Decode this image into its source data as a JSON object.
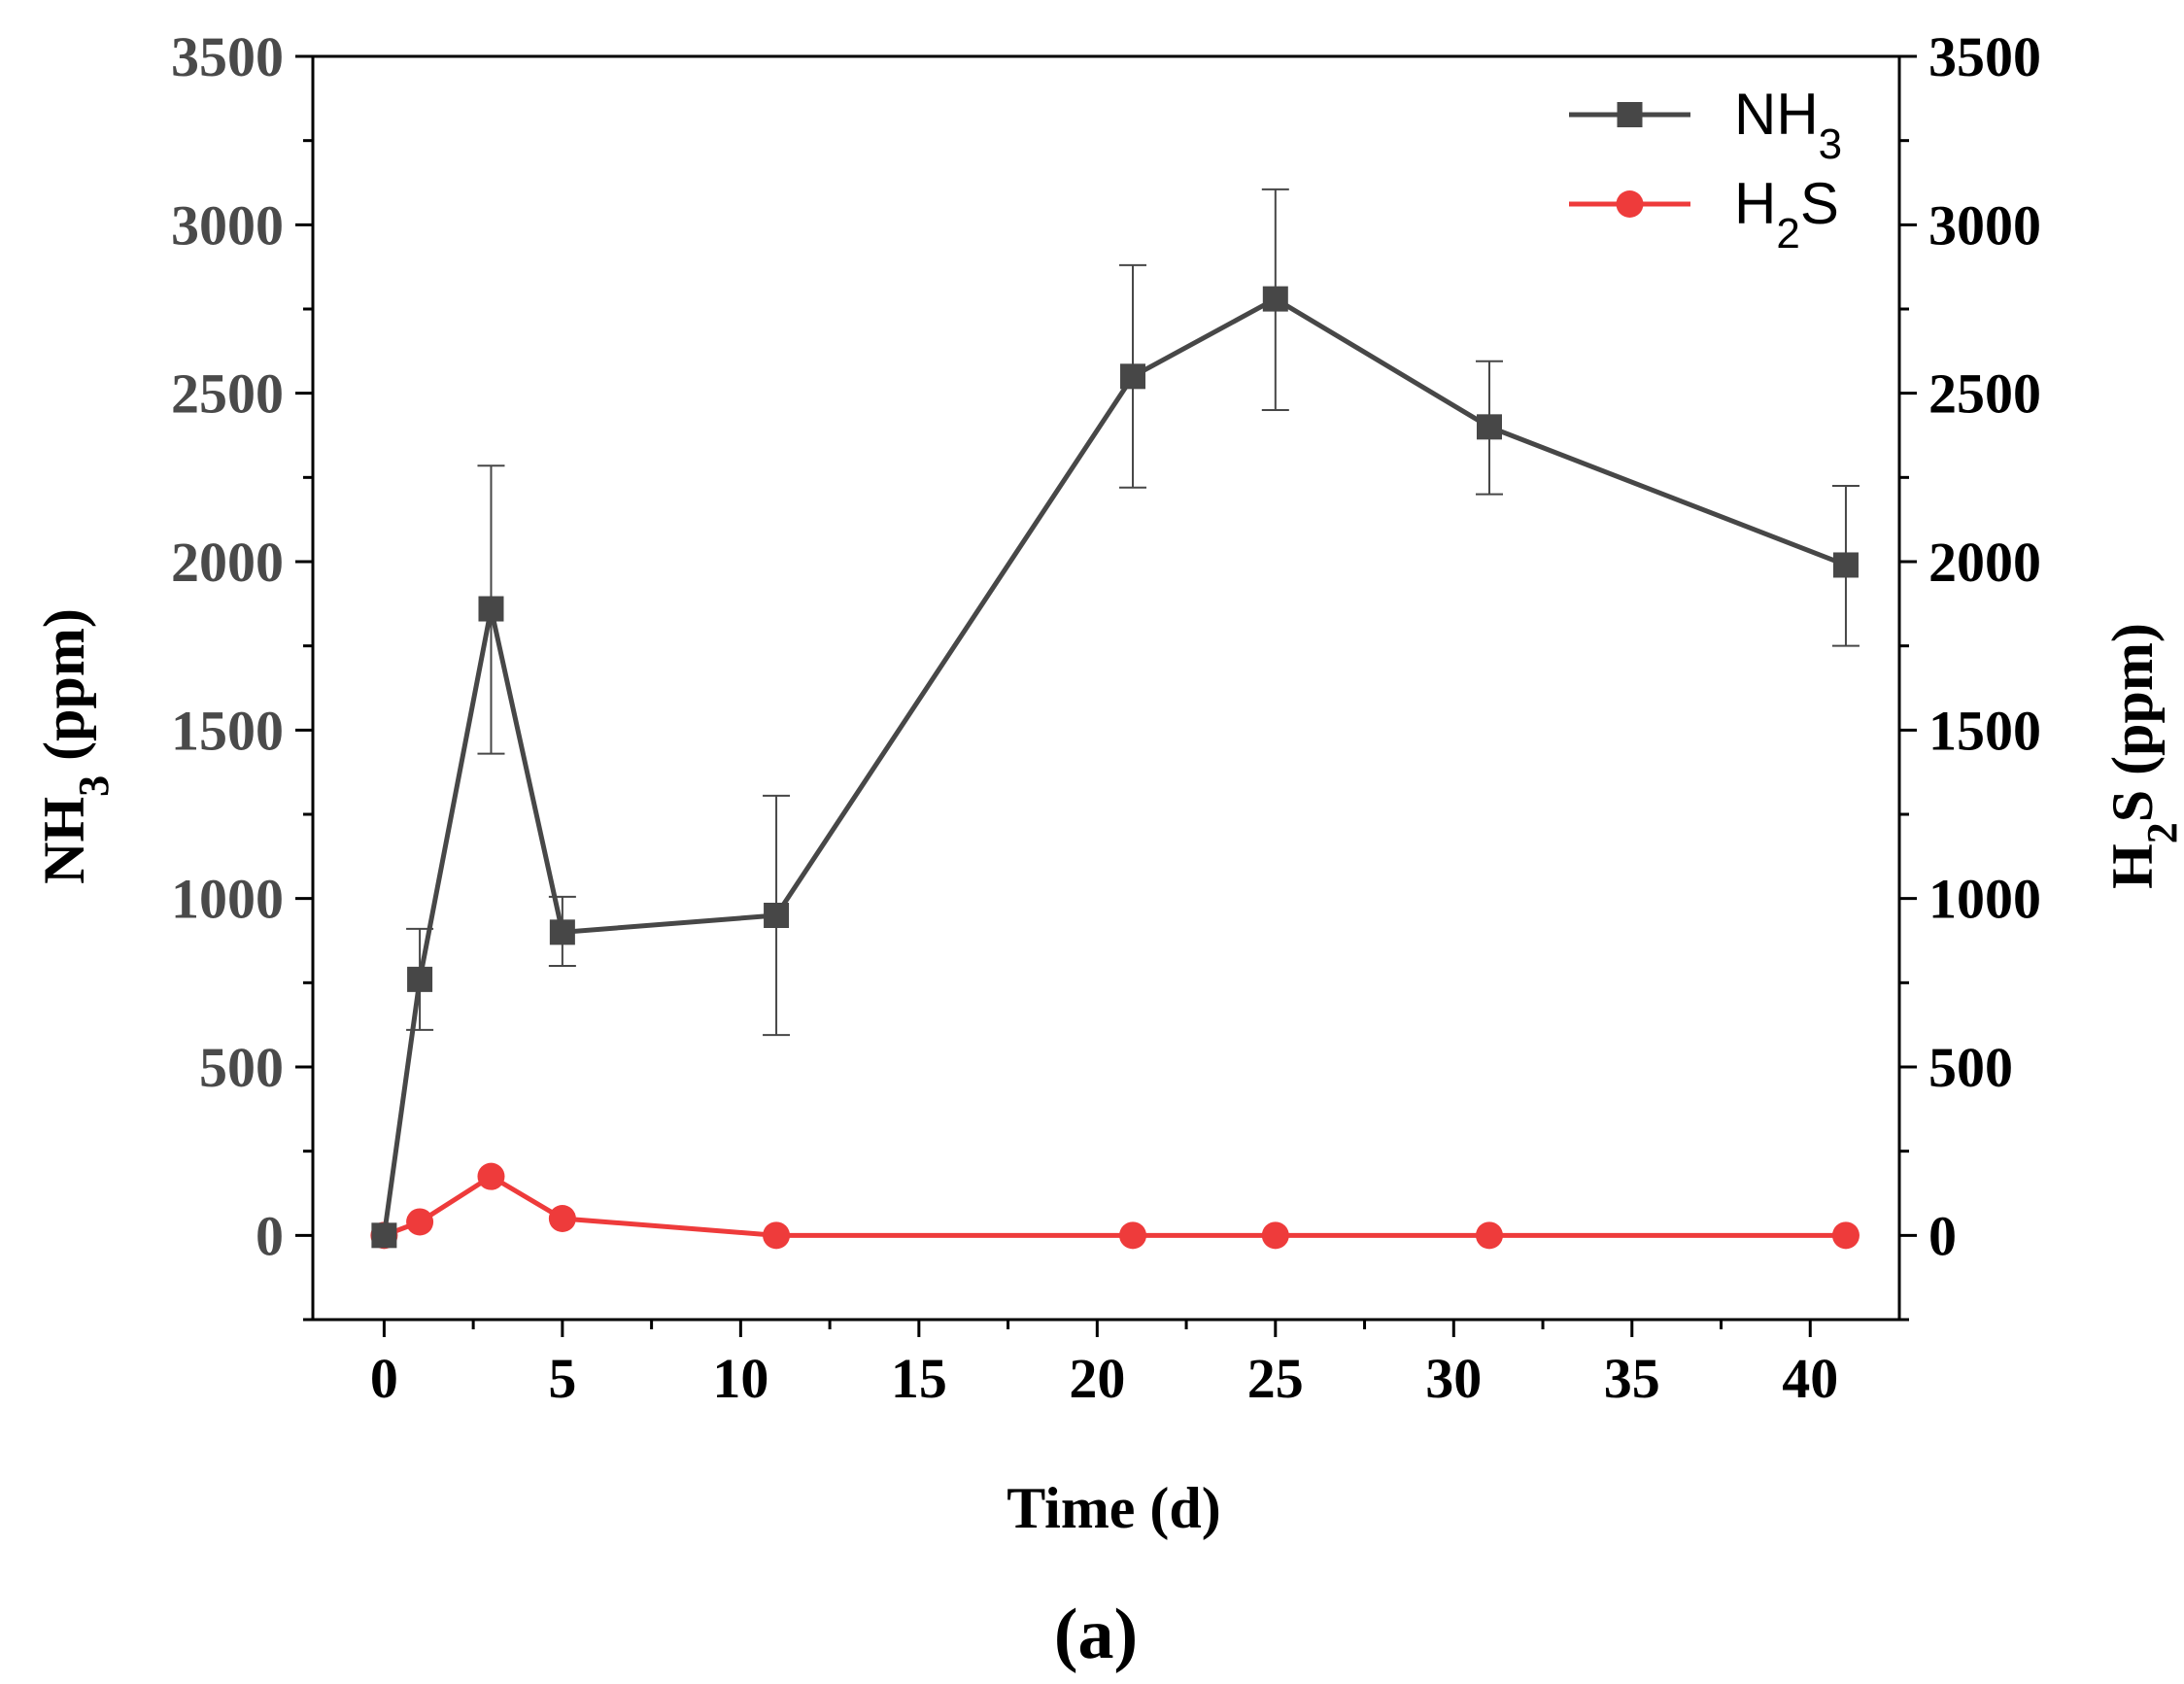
{
  "chart_data": {
    "type": "line",
    "title": "",
    "caption": "(a)",
    "xlabel": "Time (d)",
    "ylabel_left": {
      "main": "NH",
      "sub": "3",
      "rest": " (ppm)"
    },
    "ylabel_right": {
      "main": "H",
      "sub": "2",
      "rest": "S (ppm)"
    },
    "xlim": [
      -2,
      42.5
    ],
    "ylim": [
      -250,
      3500
    ],
    "xticks": [
      0,
      5,
      10,
      15,
      20,
      25,
      30,
      35,
      40
    ],
    "yticks": [
      0,
      500,
      1000,
      1500,
      2000,
      2500,
      3000,
      3500
    ],
    "series": [
      {
        "name": "NH3",
        "legend": {
          "main": "NH",
          "sub": "3",
          "rest": ""
        },
        "color": "#474747",
        "marker": "square",
        "x": [
          0,
          1,
          3,
          5,
          11,
          21,
          25,
          31,
          41
        ],
        "values": [
          0,
          760,
          1860,
          900,
          950,
          2550,
          2780,
          2400,
          1990
        ],
        "errors_low": [
          0,
          610,
          1430,
          800,
          595,
          2220,
          2450,
          2200,
          1750
        ],
        "errors_high": [
          0,
          910,
          2285,
          1005,
          1305,
          2880,
          3105,
          2595,
          2225
        ]
      },
      {
        "name": "H2S",
        "legend": {
          "main": "H",
          "sub": "2",
          "rest": "S"
        },
        "color": "#ee3b3b",
        "marker": "circle",
        "x": [
          0,
          1,
          3,
          5,
          11,
          21,
          25,
          31,
          41
        ],
        "values": [
          0,
          40,
          175,
          50,
          0,
          0,
          0,
          0,
          0
        ]
      }
    ],
    "legend_position": "top-right",
    "grid": false
  }
}
